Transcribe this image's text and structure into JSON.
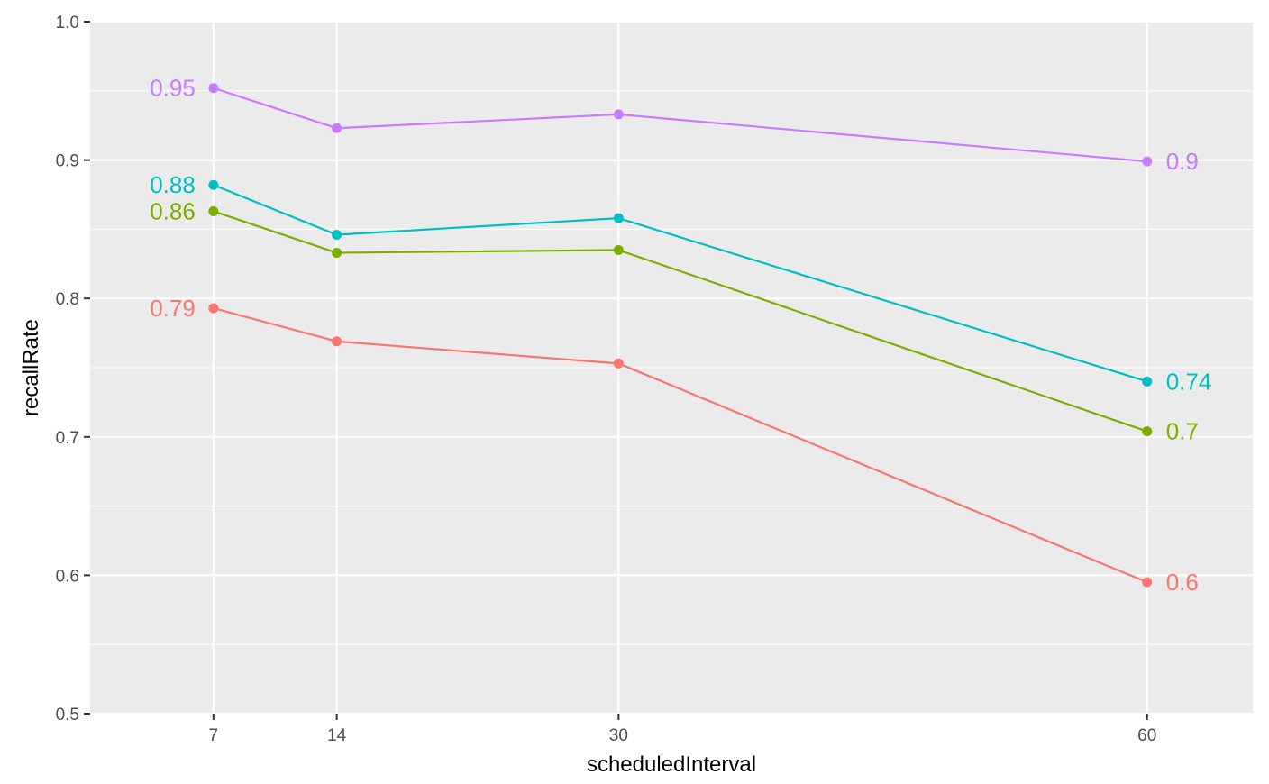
{
  "chart_data": {
    "type": "line",
    "xlabel": "scheduledInterval",
    "ylabel": "recallRate",
    "x": [
      7,
      14,
      30,
      60
    ],
    "x_tick_labels": [
      "7",
      "14",
      "30",
      "60"
    ],
    "xlim": [
      0,
      66
    ],
    "ylim": [
      0.5,
      1.0
    ],
    "y_ticks": [
      0.5,
      0.6,
      0.7,
      0.8,
      0.9,
      1.0
    ],
    "y_tick_labels": [
      "0.5",
      "0.6",
      "0.7",
      "0.8",
      "0.9",
      "1.0"
    ],
    "grid": true,
    "legend": "none",
    "series": [
      {
        "color": "#F8766D",
        "values": [
          0.793,
          0.769,
          0.753,
          0.595
        ],
        "start_label": "0.79",
        "end_label": "0.6"
      },
      {
        "color": "#7CAE00",
        "values": [
          0.863,
          0.833,
          0.835,
          0.704
        ],
        "start_label": "0.86",
        "end_label": "0.7"
      },
      {
        "color": "#00BFC4",
        "values": [
          0.882,
          0.846,
          0.858,
          0.74
        ],
        "start_label": "0.88",
        "end_label": "0.74"
      },
      {
        "color": "#C77CFF",
        "values": [
          0.952,
          0.923,
          0.933,
          0.899
        ],
        "start_label": "0.95",
        "end_label": "0.9"
      }
    ]
  }
}
